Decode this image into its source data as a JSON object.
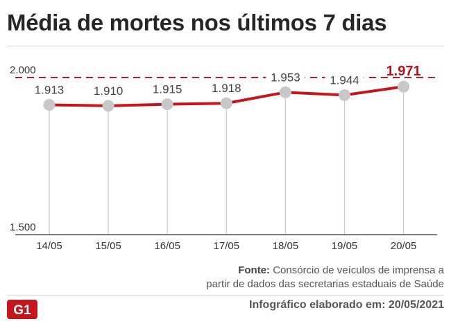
{
  "title": "Média de mortes nos últimos 7 dias",
  "source": {
    "label": "Fonte:",
    "line1": "Consórcio de veículos de imprensa a",
    "line2": "partir de dados das secretarias estaduais de Saúde"
  },
  "credit": "Infográfico elaborado em: 20/05/2021",
  "logo_text": "G1",
  "colors": {
    "line": "#c4161c",
    "highlight": "#b5121b",
    "point": "#c8c8c8",
    "logo": "#c4161c"
  },
  "chart_data": {
    "type": "line",
    "categories": [
      "14/05",
      "15/05",
      "16/05",
      "17/05",
      "18/05",
      "19/05",
      "20/05"
    ],
    "values": [
      1913,
      1910,
      1915,
      1918,
      1953,
      1944,
      1971
    ],
    "value_labels": [
      "1.913",
      "1.910",
      "1.915",
      "1.918",
      "1.953",
      "1.944",
      "1.971"
    ],
    "highlight_index": 6,
    "ylim": [
      1500,
      2000
    ],
    "y_tick_labels": [
      "1.500",
      "2.000"
    ],
    "reference_line": {
      "value": 2000,
      "style": "dashed"
    },
    "grid": "vertical lines at each category",
    "xlabel": "",
    "ylabel": ""
  }
}
